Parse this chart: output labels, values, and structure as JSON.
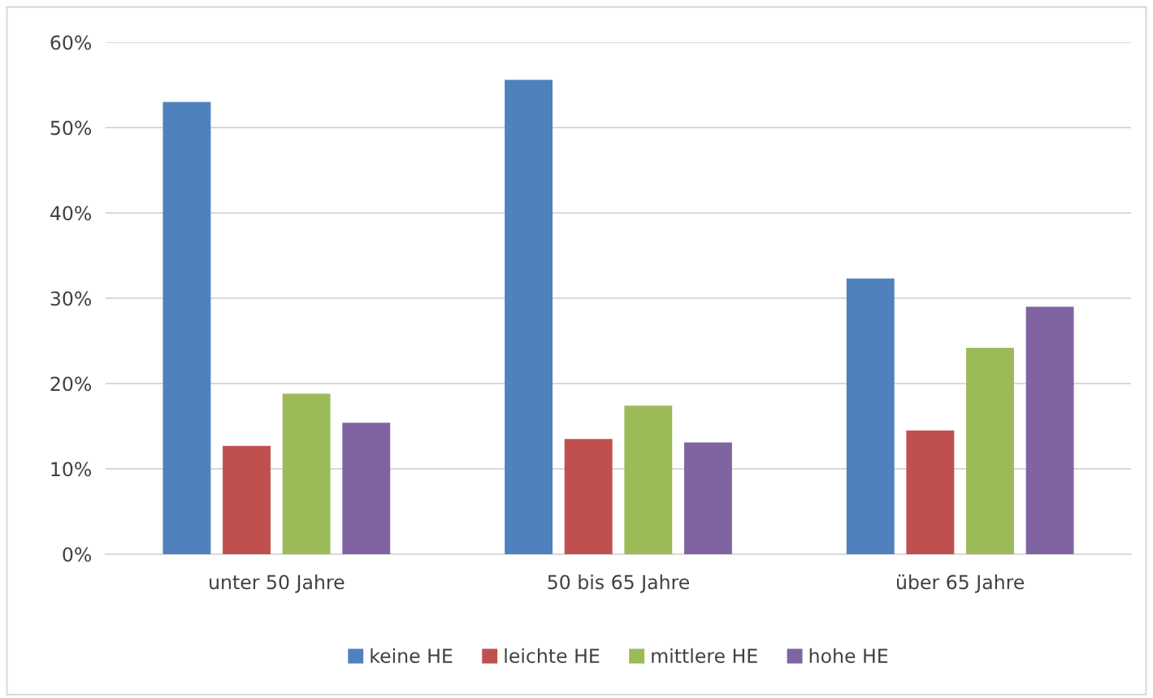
{
  "chart_data": {
    "type": "bar",
    "categories": [
      "unter 50 Jahre",
      "50 bis 65 Jahre",
      "über 65 Jahre"
    ],
    "series": [
      {
        "name": "keine HE",
        "color": "#4f81bd",
        "values": [
          53.0,
          55.6,
          32.3
        ]
      },
      {
        "name": "leichte HE",
        "color": "#c0504d",
        "values": [
          12.7,
          13.5,
          14.5
        ]
      },
      {
        "name": "mittlere HE",
        "color": "#9bbb59",
        "values": [
          18.8,
          17.4,
          24.2
        ]
      },
      {
        "name": "hohe HE",
        "color": "#8064a2",
        "values": [
          15.4,
          13.1,
          29.0
        ]
      }
    ],
    "ylim": [
      0,
      60
    ],
    "yticks": [
      {
        "value": 0,
        "label": "0%"
      },
      {
        "value": 10,
        "label": "10%"
      },
      {
        "value": 20,
        "label": "20%"
      },
      {
        "value": 30,
        "label": "30%"
      },
      {
        "value": 40,
        "label": "40%"
      },
      {
        "value": 50,
        "label": "50%"
      },
      {
        "value": 60,
        "label": "60%"
      }
    ],
    "grid": "y",
    "legend": "bottom"
  }
}
